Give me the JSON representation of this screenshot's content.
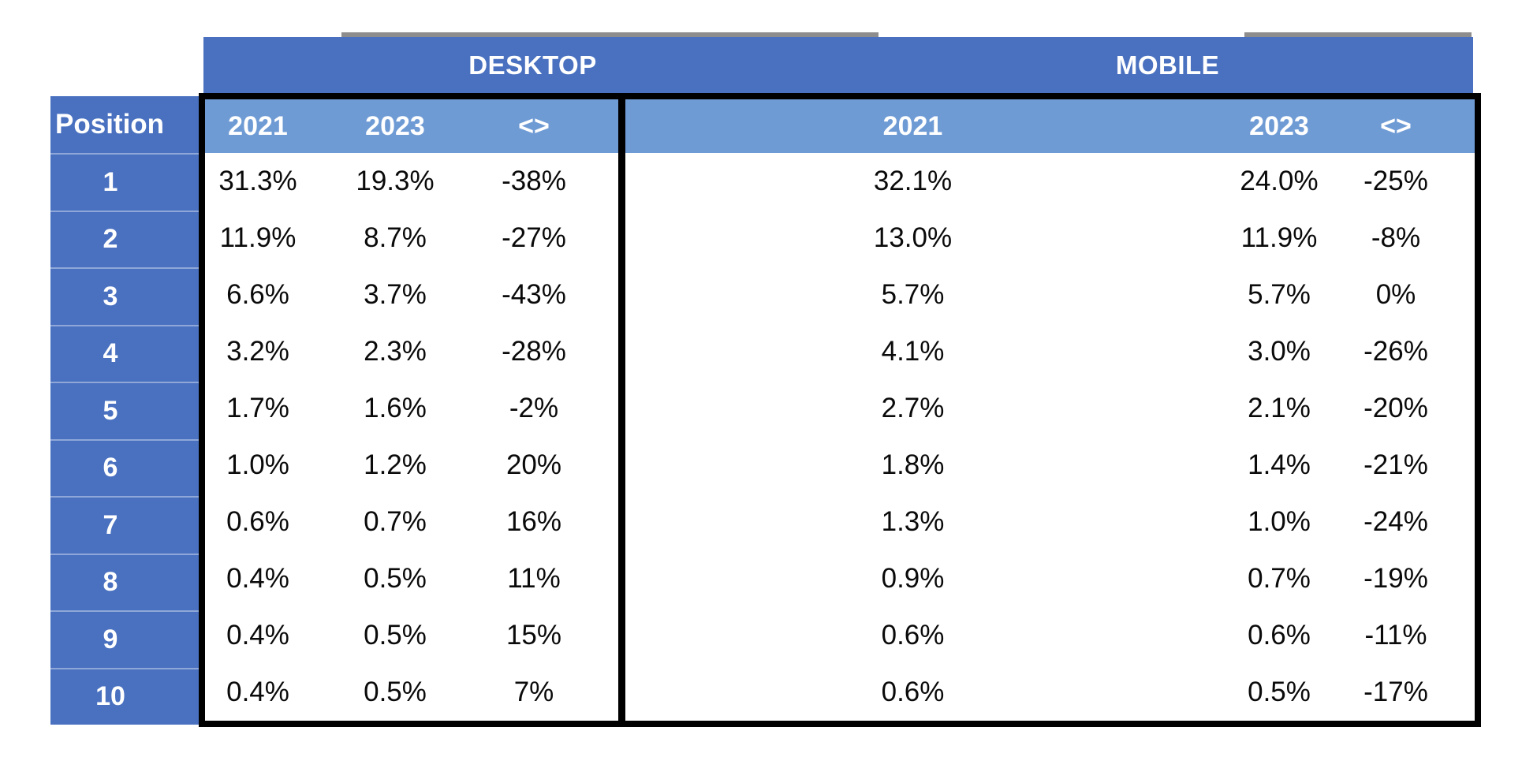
{
  "colors": {
    "band_blue": "#4a71c0",
    "position_column_blue": "#4a71c0",
    "header_light_blue": "#6f9bd5",
    "grid_border_black": "#000000",
    "grey_strip": "#8d8d8d",
    "header_text": "#ffffff",
    "data_text": "#0a0a0a"
  },
  "table": {
    "corner_header": "Position",
    "groups": [
      {
        "id": "desktop",
        "label": "DESKTOP",
        "columns": [
          "2021",
          "2023",
          "<>"
        ]
      },
      {
        "id": "mobile",
        "label": "MOBILE",
        "columns": [
          "2021",
          "2023",
          "<>"
        ]
      }
    ],
    "rows": [
      {
        "position": "1",
        "desktop": [
          "31.3%",
          "19.3%",
          "-38%"
        ],
        "mobile": [
          "32.1%",
          "24.0%",
          "-25%"
        ]
      },
      {
        "position": "2",
        "desktop": [
          "11.9%",
          "8.7%",
          "-27%"
        ],
        "mobile": [
          "13.0%",
          "11.9%",
          "-8%"
        ]
      },
      {
        "position": "3",
        "desktop": [
          "6.6%",
          "3.7%",
          "-43%"
        ],
        "mobile": [
          "5.7%",
          "5.7%",
          "0%"
        ]
      },
      {
        "position": "4",
        "desktop": [
          "3.2%",
          "2.3%",
          "-28%"
        ],
        "mobile": [
          "4.1%",
          "3.0%",
          "-26%"
        ]
      },
      {
        "position": "5",
        "desktop": [
          "1.7%",
          "1.6%",
          "-2%"
        ],
        "mobile": [
          "2.7%",
          "2.1%",
          "-20%"
        ]
      },
      {
        "position": "6",
        "desktop": [
          "1.0%",
          "1.2%",
          "20%"
        ],
        "mobile": [
          "1.8%",
          "1.4%",
          "-21%"
        ]
      },
      {
        "position": "7",
        "desktop": [
          "0.6%",
          "0.7%",
          "16%"
        ],
        "mobile": [
          "1.3%",
          "1.0%",
          "-24%"
        ]
      },
      {
        "position": "8",
        "desktop": [
          "0.4%",
          "0.5%",
          "11%"
        ],
        "mobile": [
          "0.9%",
          "0.7%",
          "-19%"
        ]
      },
      {
        "position": "9",
        "desktop": [
          "0.4%",
          "0.5%",
          "15%"
        ],
        "mobile": [
          "0.6%",
          "0.6%",
          "-11%"
        ]
      },
      {
        "position": "10",
        "desktop": [
          "0.4%",
          "0.5%",
          "7%"
        ],
        "mobile": [
          "0.6%",
          "0.5%",
          "-17%"
        ]
      }
    ]
  },
  "chart_data": {
    "type": "table",
    "row_header": "Position",
    "categories": [
      1,
      2,
      3,
      4,
      5,
      6,
      7,
      8,
      9,
      10
    ],
    "column_groups": [
      "DESKTOP",
      "MOBILE"
    ],
    "series": [
      {
        "name": "Desktop 2021",
        "unit": "%",
        "values": [
          31.3,
          11.9,
          6.6,
          3.2,
          1.7,
          1.0,
          0.6,
          0.4,
          0.4,
          0.4
        ]
      },
      {
        "name": "Desktop 2023",
        "unit": "%",
        "values": [
          19.3,
          8.7,
          3.7,
          2.3,
          1.6,
          1.2,
          0.7,
          0.5,
          0.5,
          0.5
        ]
      },
      {
        "name": "Desktop change <>",
        "unit": "%",
        "values": [
          -38,
          -27,
          -43,
          -28,
          -2,
          20,
          16,
          11,
          15,
          7
        ]
      },
      {
        "name": "Mobile 2021",
        "unit": "%",
        "values": [
          32.1,
          13.0,
          5.7,
          4.1,
          2.7,
          1.8,
          1.3,
          0.9,
          0.6,
          0.6
        ]
      },
      {
        "name": "Mobile 2023",
        "unit": "%",
        "values": [
          24.0,
          11.9,
          5.7,
          3.0,
          2.1,
          1.4,
          1.0,
          0.7,
          0.6,
          0.5
        ]
      },
      {
        "name": "Mobile change <>",
        "unit": "%",
        "values": [
          -25,
          -8,
          0,
          -26,
          -20,
          -21,
          -24,
          -19,
          -11,
          -17
        ]
      }
    ]
  }
}
